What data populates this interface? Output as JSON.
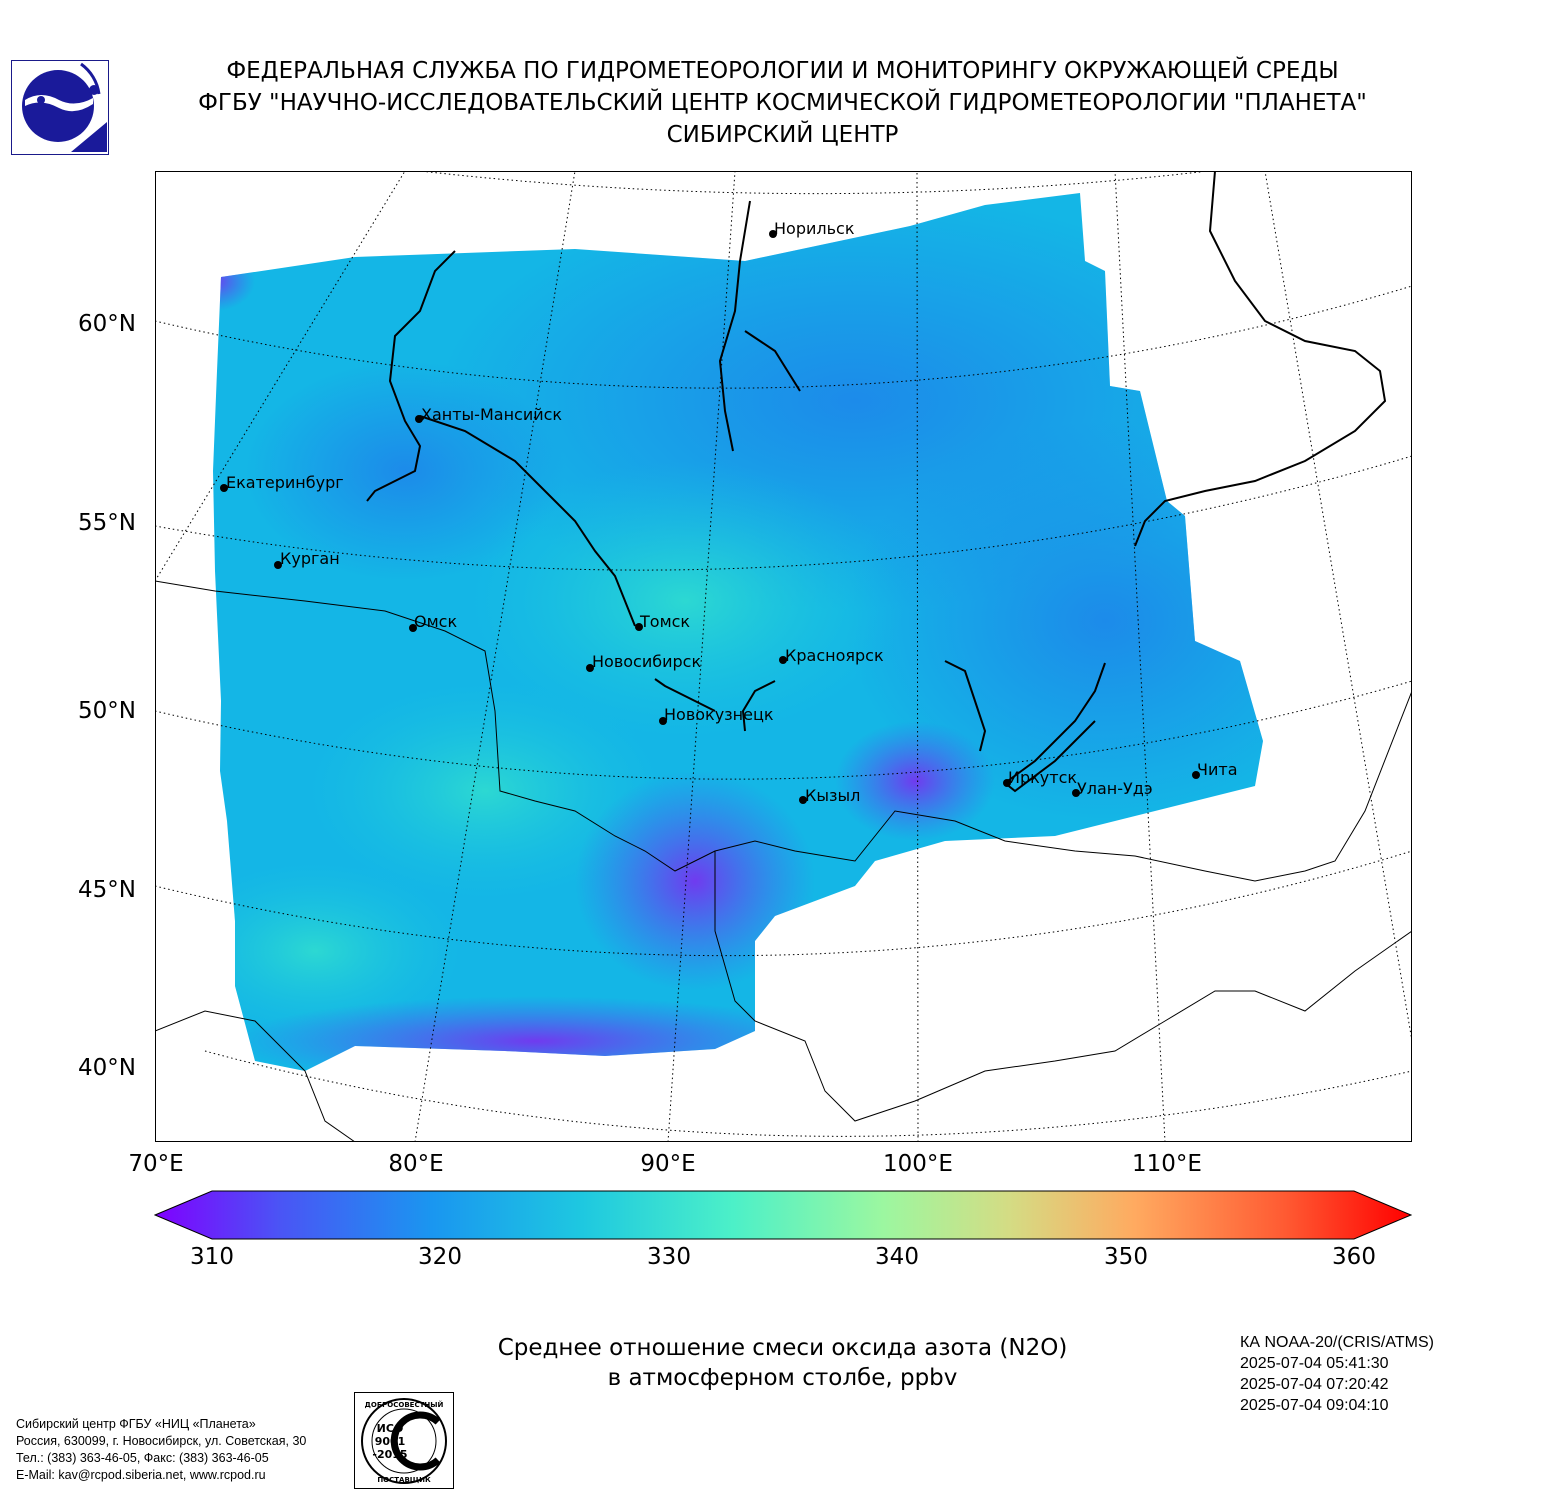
{
  "header": {
    "line1": "ФЕДЕРАЛЬНАЯ СЛУЖБА ПО ГИДРОМЕТЕОРОЛОГИИ И МОНИТОРИНГУ ОКРУЖАЮЩЕЙ СРЕДЫ",
    "line2": "ФГБУ \"НАУЧНО-ИССЛЕДОВАТЕЛЬСКИЙ ЦЕНТР КОСМИЧЕСКОЙ ГИДРОМЕТЕОРОЛОГИИ \"ПЛАНЕТА\"",
    "line3": "СИБИРСКИЙ ЦЕНТР"
  },
  "map": {
    "lat_labels": [
      "60°N",
      "55°N",
      "50°N",
      "45°N",
      "40°N"
    ],
    "lon_labels": [
      "70°E",
      "80°E",
      "90°E",
      "100°E",
      "110°E"
    ],
    "cities": [
      {
        "name": "Норильск"
      },
      {
        "name": "Ханты-Мансийск"
      },
      {
        "name": "Екатеринбург"
      },
      {
        "name": "Курган"
      },
      {
        "name": "Омск"
      },
      {
        "name": "Томск"
      },
      {
        "name": "Новосибирск"
      },
      {
        "name": "Красноярск"
      },
      {
        "name": "Новокузнецк"
      },
      {
        "name": "Кызыл"
      },
      {
        "name": "Иркутск"
      },
      {
        "name": "Улан-Удэ"
      },
      {
        "name": "Чита"
      }
    ],
    "field_colors": {
      "low": "#5a36f0",
      "mid_low": "#1e96ea",
      "mid": "#16c4e0",
      "high": "#2fe0d2"
    }
  },
  "colorbar": {
    "min": 310,
    "max": 360,
    "tick_labels": [
      "310",
      "320",
      "330",
      "340",
      "350",
      "360"
    ],
    "colormap": "rainbow (violet → blue → cyan → green → orange → red)",
    "extend": "both"
  },
  "caption": {
    "line1": "Среднее отношение смеси оксида азота (N2O)",
    "line2": "в атмосферном столбе, ppbv"
  },
  "satellite_info": {
    "line1": "КА NOAA-20/(CRIS/ATMS)",
    "line2": "2025-07-04 05:41:30",
    "line3": "2025-07-04 07:20:42",
    "line4": "2025-07-04 09:04:10"
  },
  "contacts": {
    "line1": "Сибирский центр ФГБУ «НИЦ «Планета»",
    "line2": "Россия, 630099, г. Новосибирск, ул. Советская, 30",
    "line3": "Тел.: (383) 363-46-05, Факс: (383) 363-46-05",
    "line4": "E-Mail: kav@rcpod.siberia.net, www.rcpod.ru"
  },
  "iso_badge": {
    "top": "ДОБРОСОВЕСТНЫЙ",
    "l1": "ИСО",
    "l2": "9001",
    "l3": "-2015",
    "bottom": "ПОСТАВЩИК"
  }
}
